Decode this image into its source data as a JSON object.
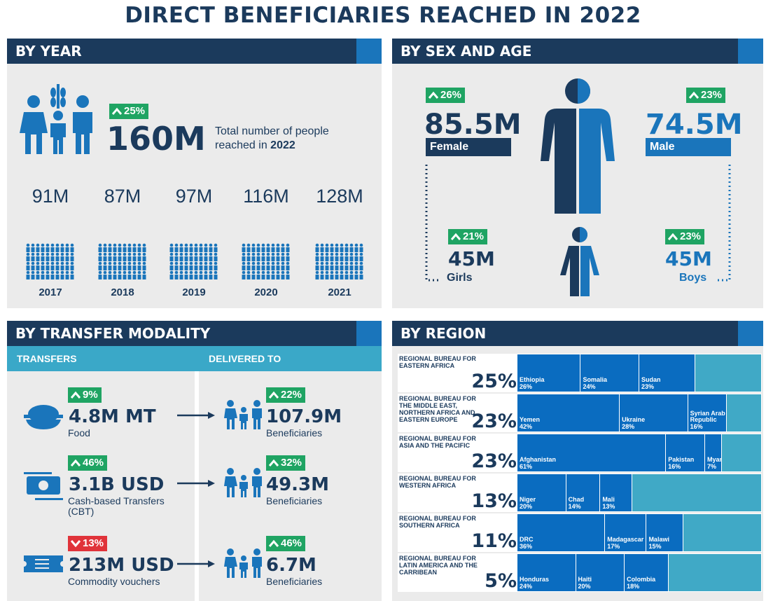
{
  "title": "DIRECT BENEFICIARIES REACHED IN 2022",
  "by_year": {
    "heading": "BY YEAR",
    "change": "25%",
    "total": "160M",
    "caption": "Total number of people reached in",
    "caption_year": "2022",
    "years": [
      {
        "value": "91M",
        "year": "2017"
      },
      {
        "value": "87M",
        "year": "2018"
      },
      {
        "value": "97M",
        "year": "2019"
      },
      {
        "value": "116M",
        "year": "2020"
      },
      {
        "value": "128M",
        "year": "2021"
      }
    ]
  },
  "by_sex_age": {
    "heading": "BY SEX AND AGE",
    "female": {
      "change": "26%",
      "value": "85.5M",
      "label": "Female"
    },
    "male": {
      "change": "23%",
      "value": "74.5M",
      "label": "Male"
    },
    "girls": {
      "change": "21%",
      "value": "45M",
      "label": "Girls"
    },
    "boys": {
      "change": "23%",
      "value": "45M",
      "label": "Boys"
    }
  },
  "by_modality": {
    "heading": "BY TRANSFER MODALITY",
    "col1": "TRANSFERS",
    "col2": "DELIVERED TO",
    "rows": [
      {
        "change": "9%",
        "direction": "up",
        "amount": "4.8M MT",
        "label": "Food",
        "ben_change": "22%",
        "beneficiaries": "107.9M",
        "ben_label": "Beneficiaries"
      },
      {
        "change": "46%",
        "direction": "up",
        "amount": "3.1B USD",
        "label": "Cash-based Transfers (CBT)",
        "ben_change": "32%",
        "beneficiaries": "49.3M",
        "ben_label": "Beneficiaries"
      },
      {
        "change": "13%",
        "direction": "down",
        "amount": "213M USD",
        "label": "Commodity vouchers",
        "ben_change": "46%",
        "beneficiaries": "6.7M",
        "ben_label": "Beneficiaries"
      }
    ]
  },
  "by_region": {
    "heading": "BY REGION",
    "regions": [
      {
        "name": "REGIONAL BUREAU FOR EASTERN AFRICA",
        "share": "25%",
        "countries": [
          {
            "name": "Ethiopia",
            "value": 26,
            "label": "26%"
          },
          {
            "name": "Somalia",
            "value": 24,
            "label": "24%"
          },
          {
            "name": "Sudan",
            "value": 23,
            "label": "23%"
          }
        ]
      },
      {
        "name": "REGIONAL BUREAU FOR THE MIDDLE EAST, NORTHERN AFRICA AND EASTERN EUROPE",
        "share": "23%",
        "countries": [
          {
            "name": "Yemen",
            "value": 42,
            "label": "42%"
          },
          {
            "name": "Ukraine",
            "value": 28,
            "label": "28%"
          },
          {
            "name": "Syrian Arab Republic",
            "value": 16,
            "label": "16%"
          }
        ]
      },
      {
        "name": "REGIONAL BUREAU FOR ASIA AND THE PACIFIC",
        "share": "23%",
        "countries": [
          {
            "name": "Afghanistan",
            "value": 61,
            "label": "61%"
          },
          {
            "name": "Pakistan",
            "value": 16,
            "label": "16%"
          },
          {
            "name": "Myanmar",
            "value": 7,
            "label": "7%"
          }
        ]
      },
      {
        "name": "REGIONAL BUREAU FOR WESTERN AFRICA",
        "share": "13%",
        "countries": [
          {
            "name": "Niger",
            "value": 20,
            "label": "20%"
          },
          {
            "name": "Chad",
            "value": 14,
            "label": "14%"
          },
          {
            "name": "Mali",
            "value": 13,
            "label": "13%"
          }
        ]
      },
      {
        "name": "REGIONAL BUREAU FOR SOUTHERN AFRICA",
        "share": "11%",
        "countries": [
          {
            "name": "DRC",
            "value": 36,
            "label": "36%"
          },
          {
            "name": "Madagascar",
            "value": 17,
            "label": "17%"
          },
          {
            "name": "Malawi",
            "value": 15,
            "label": "15%"
          }
        ]
      },
      {
        "name": "REGIONAL BUREAU FOR LATIN AMERICA AND THE CARRIBEAN",
        "share": "5%",
        "countries": [
          {
            "name": "Honduras",
            "value": 24,
            "label": "24%"
          },
          {
            "name": "Haiti",
            "value": 20,
            "label": "20%"
          },
          {
            "name": "Colombia",
            "value": 18,
            "label": "18%"
          }
        ]
      }
    ]
  }
}
